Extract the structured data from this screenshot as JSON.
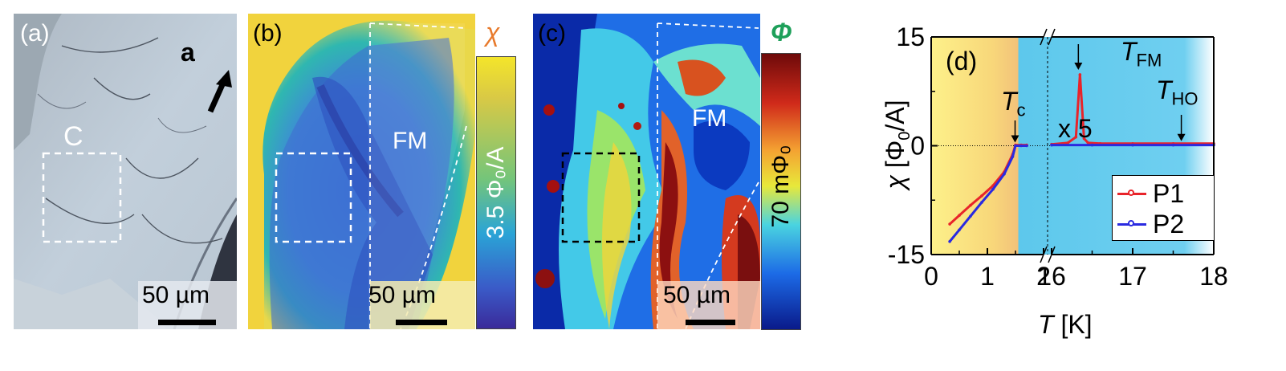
{
  "panel_a": {
    "label": "(a)",
    "axis_letter": "a",
    "region_label": "C",
    "scale_bar": "50 µm"
  },
  "panel_b": {
    "label": "(b)",
    "cbar_symbol": "χ",
    "cbar_text": "3.5 Φ₀/A",
    "region_label": "FM",
    "scale_bar": "50 µm"
  },
  "panel_c": {
    "label": "(c)",
    "cbar_symbol": "Φ",
    "cbar_text": "70 mΦ₀",
    "region_label": "FM",
    "scale_bar": "50 µm"
  },
  "panel_d": {
    "label": "(d)",
    "x5_label": "x 5"
  },
  "colors": {
    "P1": "#e8242a",
    "P2": "#2a2ae0",
    "chi_symbol": "#e87a2c",
    "phi_symbol": "#1ea05a"
  },
  "chart_data": {
    "type": "line",
    "title": "",
    "xlabel": "T [K]",
    "ylabel": "χ [Φ0/A]",
    "x_ticks": [
      "0",
      "1",
      "2",
      "16",
      "17",
      "18"
    ],
    "y_ticks": [
      "15",
      "0",
      "-15"
    ],
    "ylim": [
      -15,
      15
    ],
    "axis_break": "x axis broken between 2 and 16 K",
    "legend_position": "lower-right",
    "annotations": [
      "Tc",
      "TFM",
      "THO",
      "x 5"
    ],
    "series": [
      {
        "name": "P1",
        "color": "#e8242a",
        "x": [
          0.33,
          0.5,
          0.7,
          0.9,
          1.1,
          1.3,
          1.45,
          1.5,
          1.6,
          1.7,
          16.0,
          16.2,
          16.3,
          16.35,
          16.4,
          16.45,
          16.6,
          17.0,
          17.5,
          18.0
        ],
        "y": [
          -10.8,
          -9.6,
          -8.2,
          -6.9,
          -5.5,
          -3.6,
          -1.2,
          0.1,
          0.1,
          0.1,
          0.2,
          0.4,
          1.2,
          9.8,
          1.0,
          0.4,
          0.3,
          0.3,
          0.3,
          0.3
        ]
      },
      {
        "name": "P2",
        "color": "#2a2ae0",
        "x": [
          0.33,
          0.5,
          0.7,
          0.9,
          1.1,
          1.3,
          1.45,
          1.5,
          1.6,
          1.7,
          16.0,
          16.5,
          17.0,
          17.5,
          18.0
        ],
        "y": [
          -13.2,
          -11.6,
          -9.7,
          -7.8,
          -6.0,
          -3.9,
          -1.5,
          0.0,
          0.0,
          0.0,
          0.1,
          0.1,
          0.1,
          0.1,
          0.1
        ]
      }
    ]
  }
}
